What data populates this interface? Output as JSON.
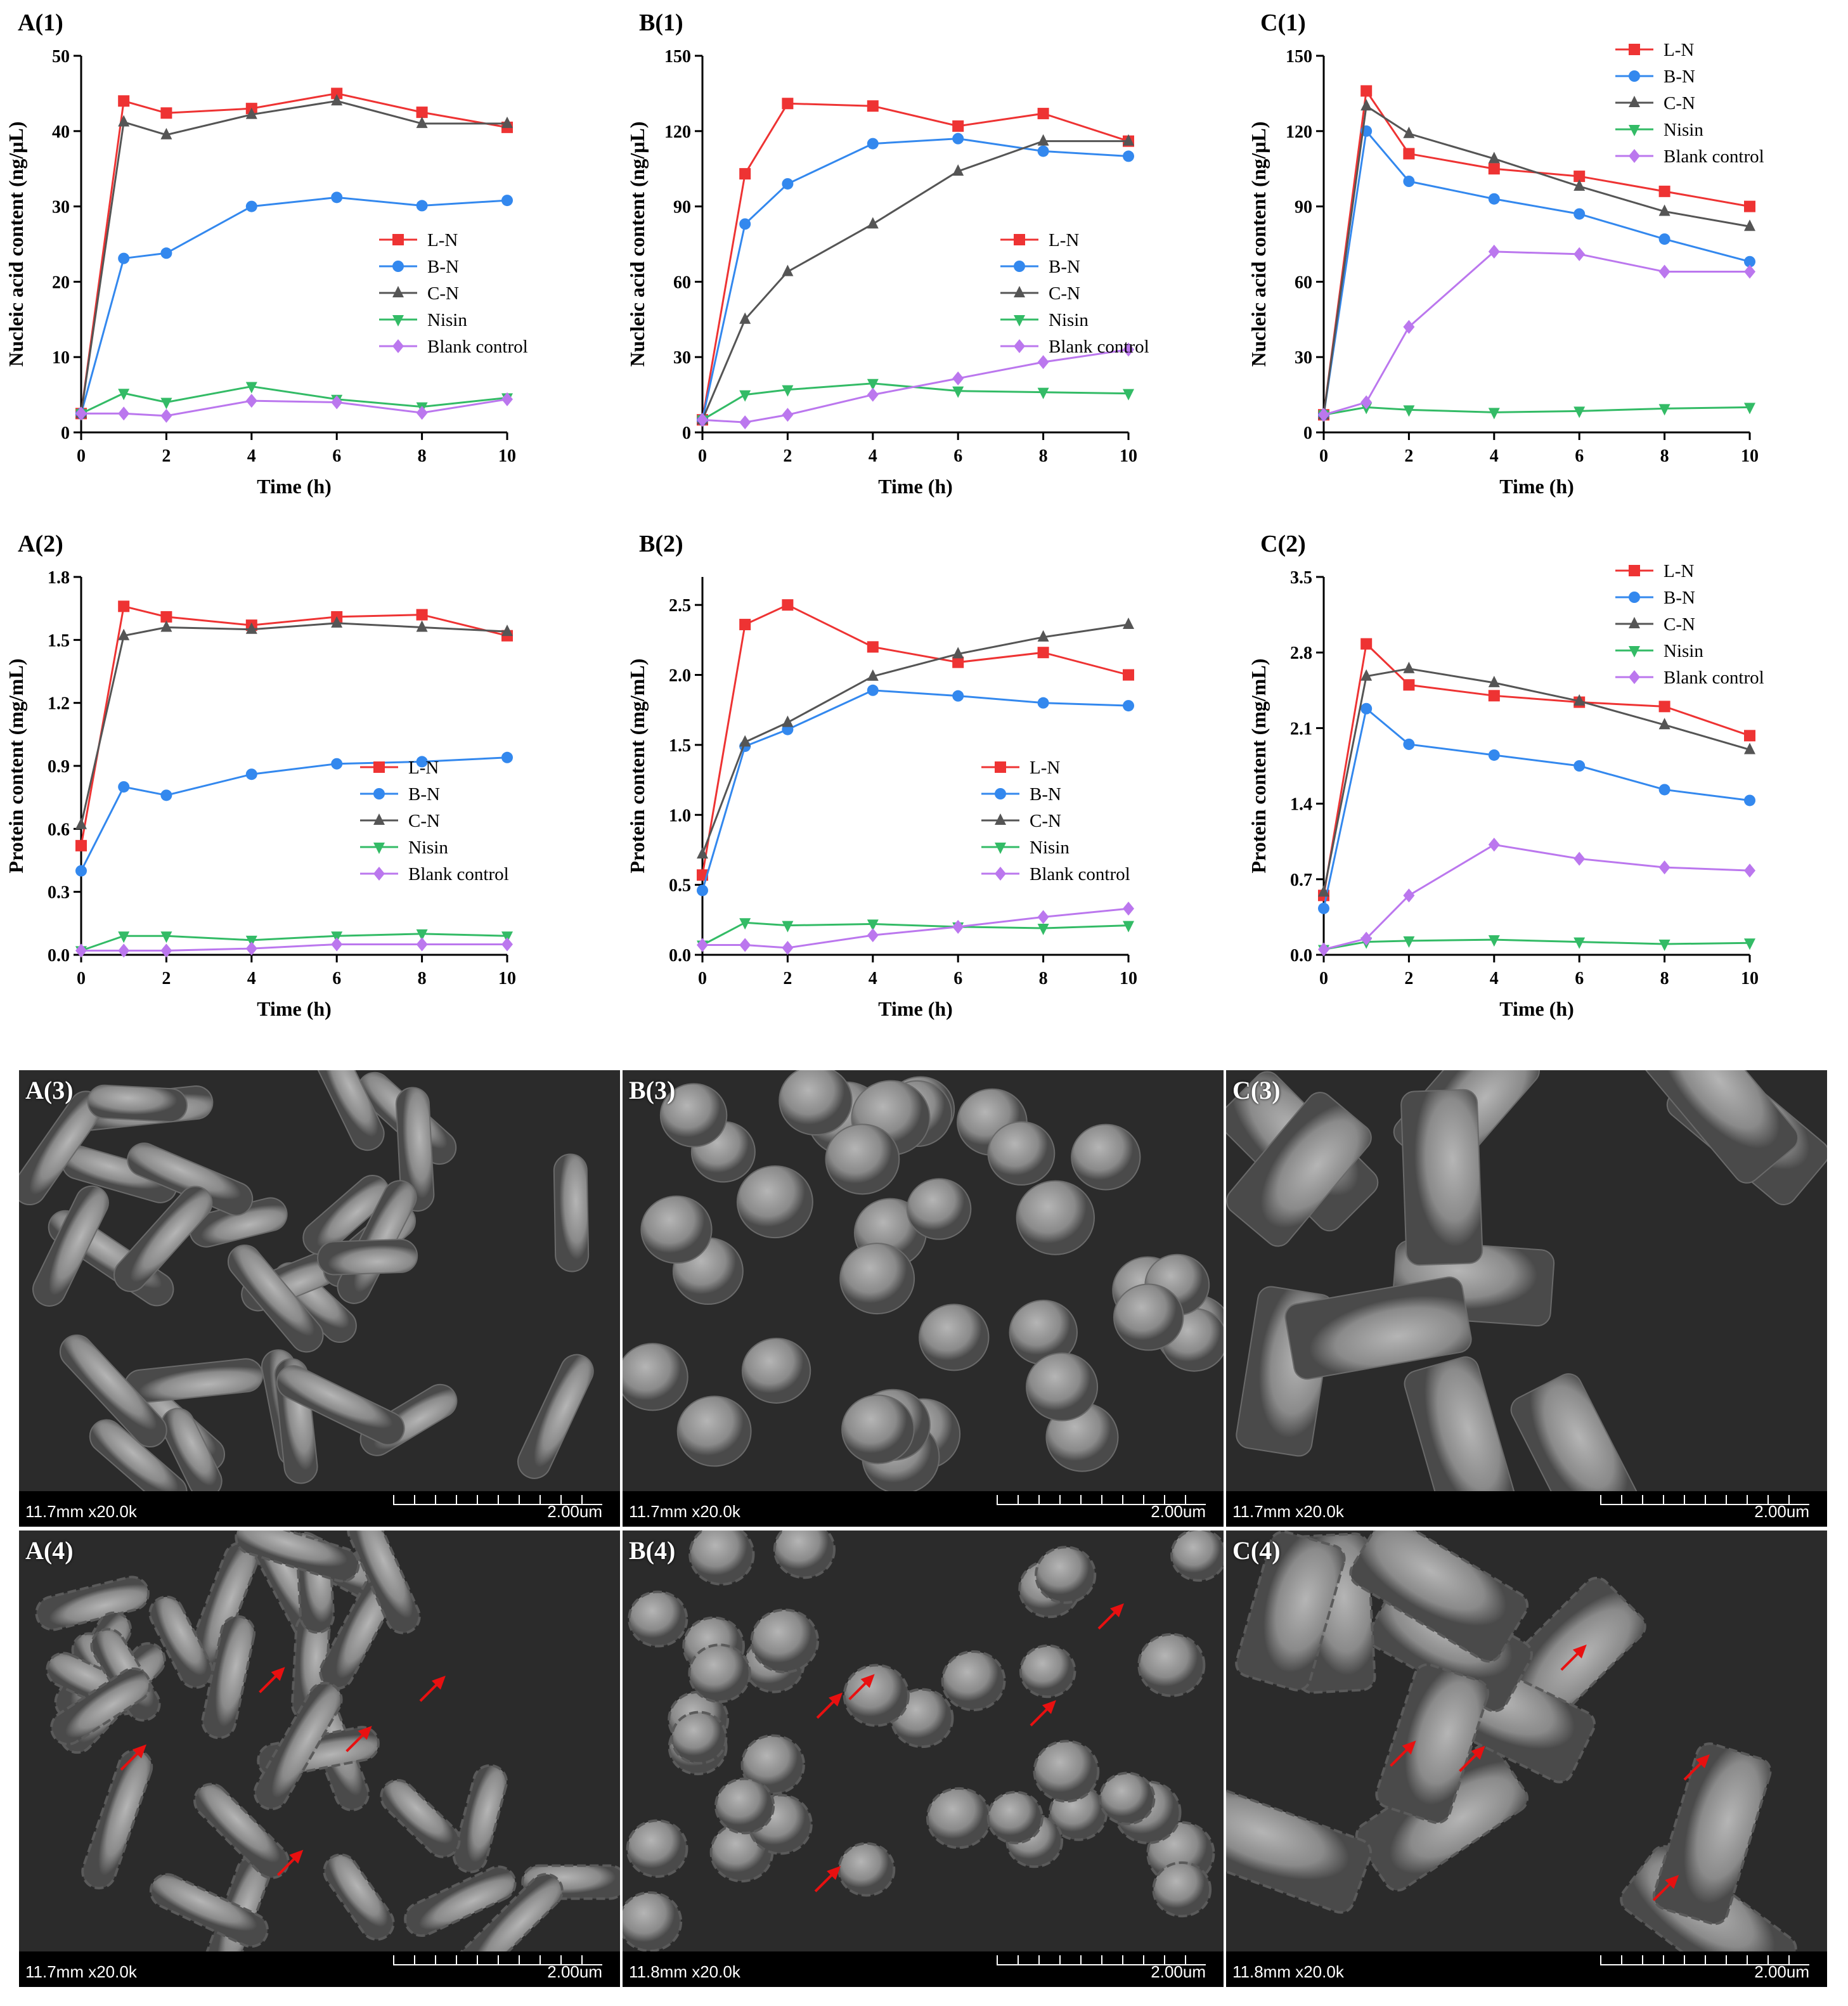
{
  "chart_data": [
    {
      "id": "A1",
      "panel_label": "A(1)",
      "type": "line",
      "xlabel": "Time (h)",
      "ylabel": "Nucleic acid content (ng/μL)",
      "xlim": [
        0,
        10
      ],
      "ylim": [
        0,
        50
      ],
      "xticks": [
        0,
        2,
        4,
        6,
        8,
        10
      ],
      "yticks": [
        0,
        10,
        20,
        30,
        40,
        50
      ],
      "legend_position": "center-right",
      "x": [
        0,
        1,
        2,
        4,
        6,
        8,
        10
      ],
      "series": [
        {
          "name": "L-N",
          "color": "#ee3333",
          "marker": "square",
          "values": [
            2.5,
            44.0,
            42.4,
            43.0,
            45.0,
            42.5,
            40.5
          ]
        },
        {
          "name": "B-N",
          "color": "#3388ee",
          "marker": "circle",
          "values": [
            2.5,
            23.1,
            23.8,
            30.0,
            31.2,
            30.1,
            30.8
          ]
        },
        {
          "name": "C-N",
          "color": "#555555",
          "marker": "triangle-up",
          "values": [
            2.5,
            41.2,
            39.5,
            42.2,
            44.0,
            41.0,
            41.0
          ]
        },
        {
          "name": "Nisin",
          "color": "#33bb66",
          "marker": "triangle-down",
          "values": [
            2.5,
            5.2,
            4.0,
            6.1,
            4.4,
            3.4,
            4.6
          ]
        },
        {
          "name": "Blank control",
          "color": "#bb77ee",
          "marker": "diamond",
          "values": [
            2.5,
            2.5,
            2.2,
            4.2,
            4.0,
            2.6,
            4.4
          ]
        }
      ]
    },
    {
      "id": "B1",
      "panel_label": "B(1)",
      "type": "line",
      "xlabel": "Time (h)",
      "ylabel": "Nucleic acid content (ng/μL)",
      "xlim": [
        0,
        10
      ],
      "ylim": [
        0,
        150
      ],
      "xticks": [
        0,
        2,
        4,
        6,
        8,
        10
      ],
      "yticks": [
        0,
        30,
        60,
        90,
        120,
        150
      ],
      "legend_position": "center-right",
      "x": [
        0,
        1,
        2,
        4,
        6,
        8,
        10
      ],
      "series": [
        {
          "name": "L-N",
          "color": "#ee3333",
          "marker": "square",
          "values": [
            5,
            103,
            131,
            130,
            122,
            127,
            116
          ]
        },
        {
          "name": "B-N",
          "color": "#3388ee",
          "marker": "circle",
          "values": [
            5,
            83,
            99,
            115,
            117,
            112,
            110
          ]
        },
        {
          "name": "C-N",
          "color": "#555555",
          "marker": "triangle-up",
          "values": [
            5,
            45,
            64,
            83,
            104,
            116,
            116
          ]
        },
        {
          "name": "Nisin",
          "color": "#33bb66",
          "marker": "triangle-down",
          "values": [
            5,
            15,
            17,
            19.5,
            16.5,
            16,
            15.5
          ]
        },
        {
          "name": "Blank control",
          "color": "#bb77ee",
          "marker": "diamond",
          "values": [
            5,
            4,
            7,
            15,
            21.5,
            28,
            33
          ]
        }
      ]
    },
    {
      "id": "C1",
      "panel_label": "C(1)",
      "type": "line",
      "xlabel": "Time (h)",
      "ylabel": "Nucleic acid content (ng/μL)",
      "xlim": [
        0,
        10
      ],
      "ylim": [
        0,
        150
      ],
      "xticks": [
        0,
        2,
        4,
        6,
        8,
        10
      ],
      "yticks": [
        0,
        30,
        60,
        90,
        120,
        150
      ],
      "legend_position": "top-right",
      "x": [
        0,
        1,
        2,
        4,
        6,
        8,
        10
      ],
      "series": [
        {
          "name": "L-N",
          "color": "#ee3333",
          "marker": "square",
          "values": [
            7,
            136,
            111,
            105,
            102,
            96,
            90
          ]
        },
        {
          "name": "B-N",
          "color": "#3388ee",
          "marker": "circle",
          "values": [
            7,
            120,
            100,
            93,
            87,
            77,
            68
          ]
        },
        {
          "name": "C-N",
          "color": "#555555",
          "marker": "triangle-up",
          "values": [
            7,
            130,
            119,
            109,
            98,
            88,
            82
          ]
        },
        {
          "name": "Nisin",
          "color": "#33bb66",
          "marker": "triangle-down",
          "values": [
            7,
            10,
            9,
            8,
            8.5,
            9.5,
            10
          ]
        },
        {
          "name": "Blank control",
          "color": "#bb77ee",
          "marker": "diamond",
          "values": [
            7,
            12,
            42,
            72,
            71,
            64,
            64
          ]
        }
      ]
    },
    {
      "id": "A2",
      "panel_label": "A(2)",
      "type": "line",
      "xlabel": "Time (h)",
      "ylabel": "Protein content (mg/mL)",
      "xlim": [
        0,
        10
      ],
      "ylim": [
        0,
        1.8
      ],
      "xticks": [
        0,
        2,
        4,
        6,
        8,
        10
      ],
      "yticks": [
        0.0,
        0.3,
        0.6,
        0.9,
        1.2,
        1.5,
        1.8
      ],
      "legend_position": "bottom-right",
      "x": [
        0,
        1,
        2,
        4,
        6,
        8,
        10
      ],
      "series": [
        {
          "name": "L-N",
          "color": "#ee3333",
          "marker": "square",
          "values": [
            0.52,
            1.66,
            1.61,
            1.57,
            1.61,
            1.62,
            1.52
          ]
        },
        {
          "name": "B-N",
          "color": "#3388ee",
          "marker": "circle",
          "values": [
            0.4,
            0.8,
            0.76,
            0.86,
            0.91,
            0.92,
            0.94
          ]
        },
        {
          "name": "C-N",
          "color": "#555555",
          "marker": "triangle-up",
          "values": [
            0.62,
            1.52,
            1.56,
            1.55,
            1.58,
            1.56,
            1.54
          ]
        },
        {
          "name": "Nisin",
          "color": "#33bb66",
          "marker": "triangle-down",
          "values": [
            0.02,
            0.09,
            0.09,
            0.07,
            0.09,
            0.1,
            0.09
          ]
        },
        {
          "name": "Blank control",
          "color": "#bb77ee",
          "marker": "diamond",
          "values": [
            0.02,
            0.02,
            0.02,
            0.03,
            0.05,
            0.05,
            0.05
          ]
        }
      ]
    },
    {
      "id": "B2",
      "panel_label": "B(2)",
      "type": "line",
      "xlabel": "Time (h)",
      "ylabel": "Protein content (mg/mL)",
      "xlim": [
        0,
        10
      ],
      "ylim": [
        0,
        2.7
      ],
      "xticks": [
        0,
        2,
        4,
        6,
        8,
        10
      ],
      "yticks": [
        0.0,
        0.5,
        1.0,
        1.5,
        2.0,
        2.5
      ],
      "legend_position": "bottom-right",
      "x": [
        0,
        1,
        2,
        4,
        6,
        8,
        10
      ],
      "series": [
        {
          "name": "L-N",
          "color": "#ee3333",
          "marker": "square",
          "values": [
            0.57,
            2.36,
            2.5,
            2.2,
            2.09,
            2.16,
            2.0
          ]
        },
        {
          "name": "B-N",
          "color": "#3388ee",
          "marker": "circle",
          "values": [
            0.46,
            1.49,
            1.61,
            1.89,
            1.85,
            1.8,
            1.78
          ]
        },
        {
          "name": "C-N",
          "color": "#555555",
          "marker": "triangle-up",
          "values": [
            0.72,
            1.52,
            1.66,
            1.99,
            2.15,
            2.27,
            2.36
          ]
        },
        {
          "name": "Nisin",
          "color": "#33bb66",
          "marker": "triangle-down",
          "values": [
            0.07,
            0.23,
            0.21,
            0.22,
            0.2,
            0.19,
            0.21
          ]
        },
        {
          "name": "Blank control",
          "color": "#bb77ee",
          "marker": "diamond",
          "values": [
            0.07,
            0.07,
            0.05,
            0.14,
            0.2,
            0.27,
            0.33
          ]
        }
      ]
    },
    {
      "id": "C2",
      "panel_label": "C(2)",
      "type": "line",
      "xlabel": "Time (h)",
      "ylabel": "Protein content (mg/mL)",
      "xlim": [
        0,
        10
      ],
      "ylim": [
        0,
        3.5
      ],
      "xticks": [
        0,
        2,
        4,
        6,
        8,
        10
      ],
      "yticks": [
        0.0,
        0.7,
        1.4,
        2.1,
        2.8,
        3.5
      ],
      "legend_position": "top-right",
      "x": [
        0,
        1,
        2,
        4,
        6,
        8,
        10
      ],
      "series": [
        {
          "name": "L-N",
          "color": "#ee3333",
          "marker": "square",
          "values": [
            0.55,
            2.88,
            2.5,
            2.4,
            2.34,
            2.3,
            2.03
          ]
        },
        {
          "name": "B-N",
          "color": "#3388ee",
          "marker": "circle",
          "values": [
            0.43,
            2.28,
            1.95,
            1.85,
            1.75,
            1.53,
            1.43
          ]
        },
        {
          "name": "C-N",
          "color": "#555555",
          "marker": "triangle-up",
          "values": [
            0.58,
            2.58,
            2.65,
            2.52,
            2.35,
            2.13,
            1.9
          ]
        },
        {
          "name": "Nisin",
          "color": "#33bb66",
          "marker": "triangle-down",
          "values": [
            0.05,
            0.12,
            0.13,
            0.14,
            0.12,
            0.1,
            0.11
          ]
        },
        {
          "name": "Blank control",
          "color": "#bb77ee",
          "marker": "diamond",
          "values": [
            0.05,
            0.15,
            0.55,
            1.02,
            0.89,
            0.81,
            0.78
          ]
        }
      ]
    }
  ],
  "micrographs": [
    {
      "label": "A(3)",
      "info": "11.7mm x20.0k",
      "scale": "2.00um",
      "morphology": "rods",
      "arrows": false
    },
    {
      "label": "B(3)",
      "info": "11.7mm x20.0k",
      "scale": "2.00um",
      "morphology": "cocci",
      "arrows": false
    },
    {
      "label": "C(3)",
      "info": "11.7mm x20.0k",
      "scale": "2.00um",
      "morphology": "thick-rods",
      "arrows": false
    },
    {
      "label": "A(4)",
      "info": "11.7mm x20.0k",
      "scale": "2.00um",
      "morphology": "rods",
      "arrows": true
    },
    {
      "label": "B(4)",
      "info": "11.8mm x20.0k",
      "scale": "2.00um",
      "morphology": "cocci",
      "arrows": true
    },
    {
      "label": "C(4)",
      "info": "11.8mm x20.0k",
      "scale": "2.00um",
      "morphology": "thick-rods",
      "arrows": true
    }
  ],
  "colors": {
    "arrow": "#e81010",
    "sem_background": "#2b2b2b",
    "sem_cell": "#8a8a8a"
  }
}
